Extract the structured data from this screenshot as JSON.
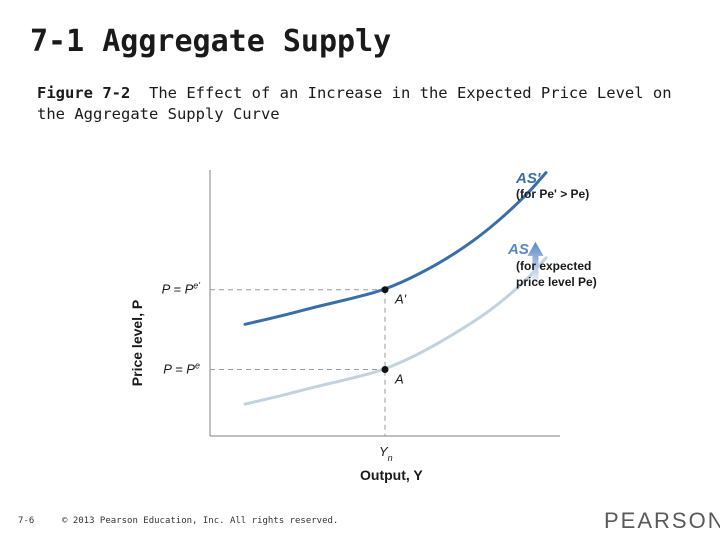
{
  "slide": {
    "title": "7-1 Aggregate Supply",
    "figure_label": "Figure 7-2",
    "figure_caption": "The Effect of an Increase in the Expected Price Level on the Aggregate Supply Curve"
  },
  "footer": {
    "page_number": "7-6",
    "copyright": "© 2013 Pearson Education, Inc. All rights reserved.",
    "logo_text": "PEARSON"
  },
  "colors": {
    "as_prime_curve": "#3a6ea8",
    "as_curve": "#c3d3de",
    "arrow": "#5b87c4",
    "axis": "#999999",
    "guide": "#9a9a9a",
    "label": "#1a1a1a"
  },
  "chart_data": {
    "type": "line",
    "title": "",
    "xlabel": "Output, Y",
    "ylabel": "Price level, P",
    "xlim": [
      0,
      10
    ],
    "ylim": [
      0,
      10
    ],
    "grid": false,
    "x_ticks": [
      {
        "value": 5,
        "label": "Yn"
      }
    ],
    "y_ticks": [
      {
        "value": 5.5,
        "label": "P = Pe'"
      },
      {
        "value": 2.5,
        "label": "P = Pe"
      }
    ],
    "series": [
      {
        "name": "AS'",
        "label": "AS'",
        "note": "(for Pe' > Pe)",
        "color": "#3a6ea8",
        "x": [
          1,
          2,
          3,
          4,
          5,
          6,
          7,
          8,
          9,
          9.6
        ],
        "y": [
          4.2,
          4.5,
          4.85,
          5.15,
          5.5,
          6.1,
          6.85,
          7.8,
          9.0,
          9.9
        ]
      },
      {
        "name": "AS",
        "label": "AS",
        "note": "(for expected price level Pe)",
        "color": "#c3d3de",
        "x": [
          1,
          2,
          3,
          4,
          5,
          6,
          7,
          8,
          9,
          9.6
        ],
        "y": [
          1.2,
          1.5,
          1.85,
          2.15,
          2.5,
          3.1,
          3.85,
          4.7,
          5.8,
          6.7
        ]
      }
    ],
    "points": [
      {
        "name": "A'",
        "x": 5,
        "y": 5.5
      },
      {
        "name": "A",
        "x": 5,
        "y": 2.5
      }
    ],
    "annotations": [
      {
        "type": "arrow",
        "direction": "up",
        "x": 9.3,
        "from": 5.6,
        "to": 7.3,
        "meaning": "upward shift of AS"
      }
    ]
  }
}
